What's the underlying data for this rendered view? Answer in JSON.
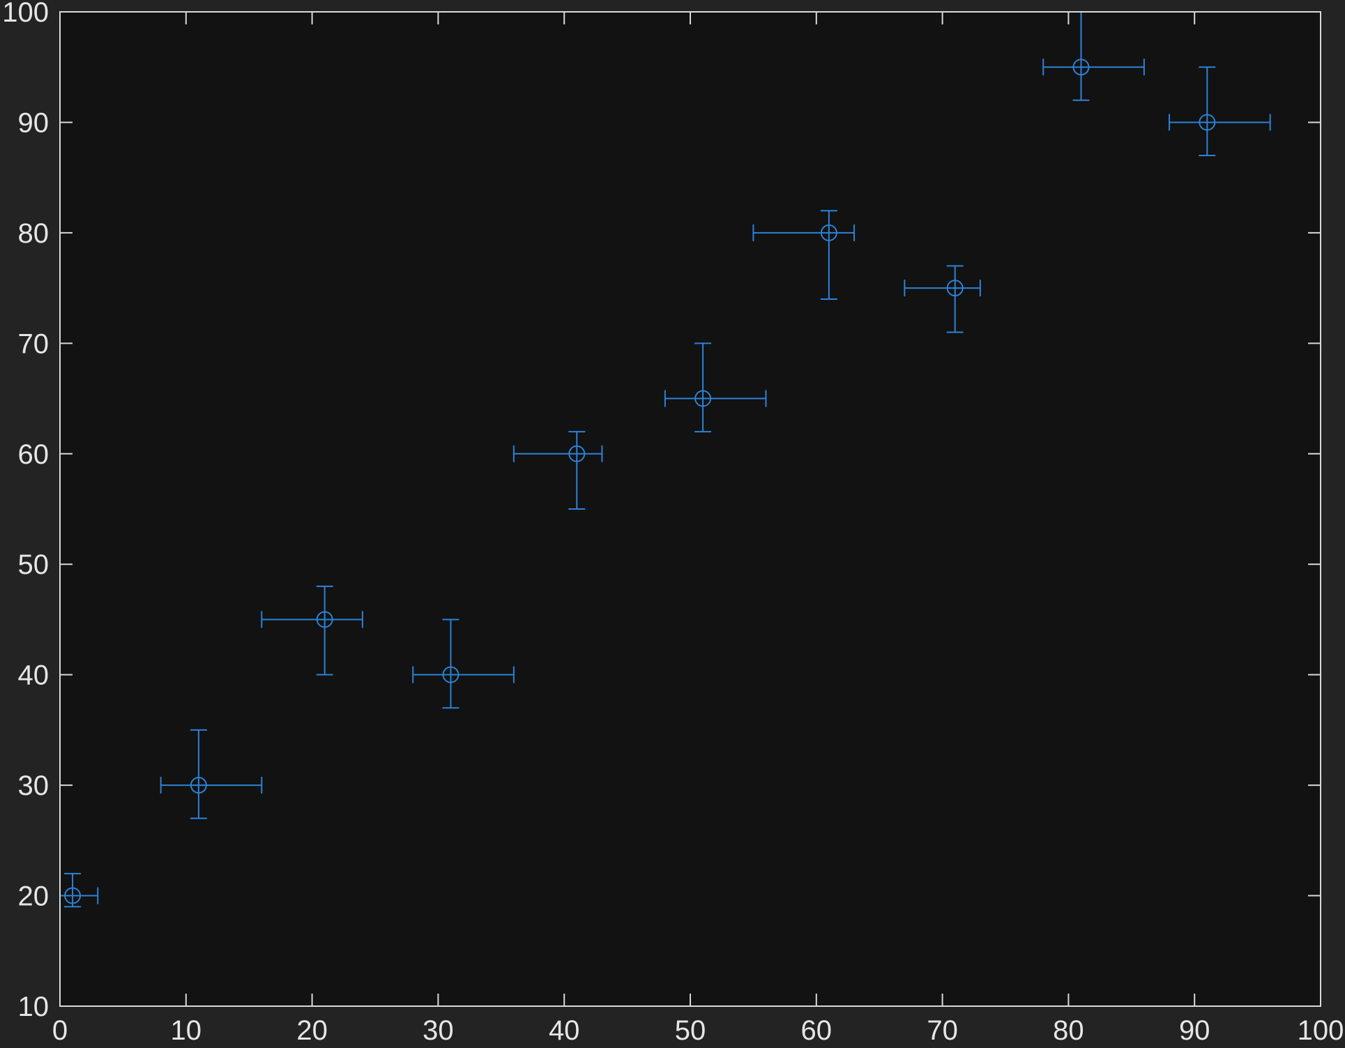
{
  "chart_data": {
    "type": "scatter",
    "title": "",
    "xlabel": "",
    "ylabel": "",
    "xlim": [
      0,
      100
    ],
    "ylim": [
      10,
      100
    ],
    "x_ticks": [
      0,
      10,
      20,
      30,
      40,
      50,
      60,
      70,
      80,
      90,
      100
    ],
    "y_ticks": [
      10,
      20,
      30,
      40,
      50,
      60,
      70,
      80,
      90,
      100
    ],
    "x_tick_labels": [
      "0",
      "10",
      "20",
      "30",
      "40",
      "50",
      "60",
      "70",
      "80",
      "90",
      "100"
    ],
    "y_tick_labels": [
      "10",
      "20",
      "30",
      "40",
      "50",
      "60",
      "70",
      "80",
      "90",
      "100"
    ],
    "grid": false,
    "legend": "none",
    "marker": "circle",
    "colors": {
      "page_background": "#232323",
      "axes_background": "#121212",
      "axes_lines": "#d9d9d9",
      "series": "#2c82d6"
    },
    "series": [
      {
        "points": [
          {
            "x": 1,
            "y": 20,
            "x_err_low": 1,
            "x_err_high": 2,
            "y_err_low": 1,
            "y_err_high": 2
          },
          {
            "x": 11,
            "y": 30,
            "x_err_low": 3,
            "x_err_high": 5,
            "y_err_low": 3,
            "y_err_high": 5
          },
          {
            "x": 21,
            "y": 45,
            "x_err_low": 5,
            "x_err_high": 3,
            "y_err_low": 5,
            "y_err_high": 3
          },
          {
            "x": 31,
            "y": 40,
            "x_err_low": 3,
            "x_err_high": 5,
            "y_err_low": 3,
            "y_err_high": 5
          },
          {
            "x": 41,
            "y": 60,
            "x_err_low": 5,
            "x_err_high": 2,
            "y_err_low": 5,
            "y_err_high": 2
          },
          {
            "x": 51,
            "y": 65,
            "x_err_low": 3,
            "x_err_high": 5,
            "y_err_low": 3,
            "y_err_high": 5
          },
          {
            "x": 61,
            "y": 80,
            "x_err_low": 6,
            "x_err_high": 2,
            "y_err_low": 6,
            "y_err_high": 2
          },
          {
            "x": 71,
            "y": 75,
            "x_err_low": 4,
            "x_err_high": 2,
            "y_err_low": 4,
            "y_err_high": 2
          },
          {
            "x": 81,
            "y": 95,
            "x_err_low": 3,
            "x_err_high": 5,
            "y_err_low": 3,
            "y_err_high": 5
          },
          {
            "x": 91,
            "y": 90,
            "x_err_low": 3,
            "x_err_high": 5,
            "y_err_low": 3,
            "y_err_high": 5
          }
        ]
      }
    ]
  }
}
